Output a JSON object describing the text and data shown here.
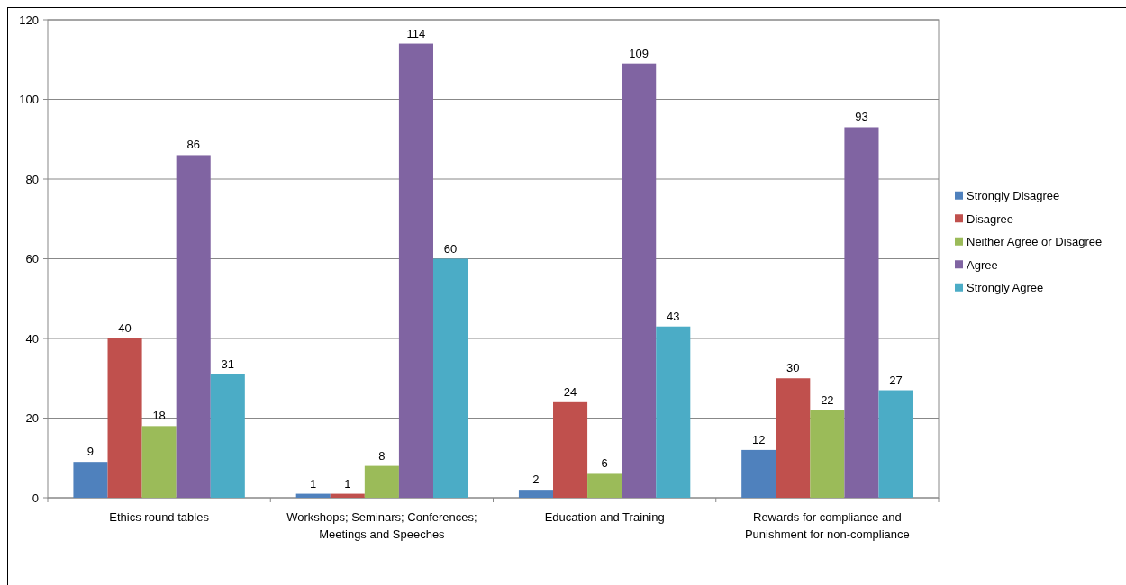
{
  "chart_data": {
    "type": "bar",
    "categories": [
      "Ethics round tables",
      "Workshops; Seminars; Conferences; Meetings and Speeches",
      "Education and Training",
      "Rewards for compliance and Punishment for non-compliance"
    ],
    "series": [
      {
        "name": "Strongly Disagree",
        "color": "#4f81bd",
        "values": [
          9,
          1,
          2,
          12
        ]
      },
      {
        "name": "Disagree",
        "color": "#c0504d",
        "values": [
          40,
          1,
          24,
          30
        ]
      },
      {
        "name": "Neither Agree or Disagree",
        "color": "#9bbb59",
        "values": [
          18,
          8,
          6,
          22
        ]
      },
      {
        "name": "Agree",
        "color": "#8064a2",
        "values": [
          86,
          114,
          109,
          93
        ]
      },
      {
        "name": "Strongly Agree",
        "color": "#4bacc6",
        "values": [
          31,
          60,
          43,
          27
        ]
      }
    ],
    "ylim": [
      0,
      120
    ],
    "yticks": [
      0,
      20,
      40,
      60,
      80,
      100,
      120
    ],
    "grid": "y",
    "legend": "right",
    "data_labels": true
  }
}
